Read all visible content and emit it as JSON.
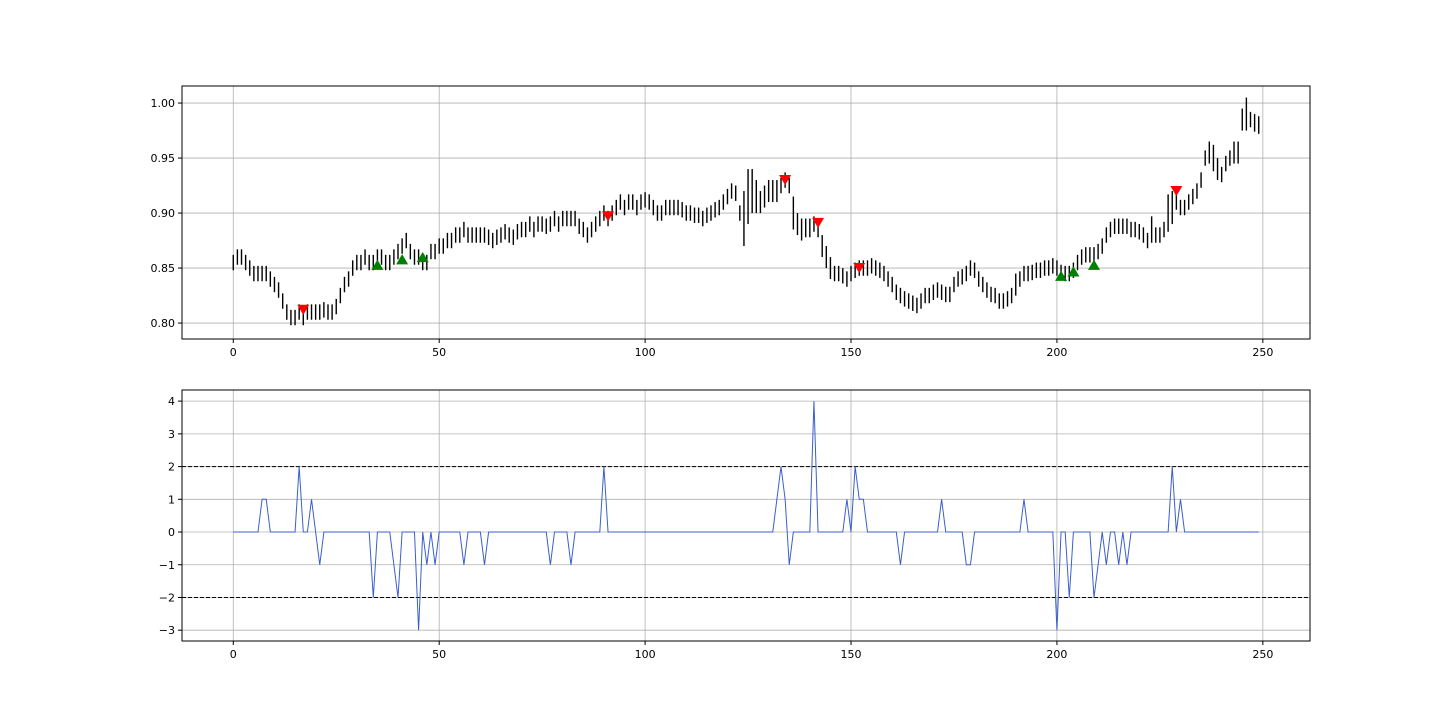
{
  "chart_data": [
    {
      "type": "ohlc",
      "color": "#000000",
      "grid": true,
      "xlim": [
        -12.45,
        261.45
      ],
      "xticks": [
        0,
        50,
        100,
        150,
        200,
        250
      ],
      "ylim": [
        0.7855,
        1.0155
      ],
      "yticks": [
        {
          "value": 0.8,
          "label": "0.80"
        },
        {
          "value": 0.85,
          "label": "0.85"
        },
        {
          "value": 0.9,
          "label": "0.90"
        },
        {
          "value": 0.95,
          "label": "0.95"
        },
        {
          "value": 1.0,
          "label": "1.00"
        }
      ],
      "high": [
        0.862,
        0.867,
        0.867,
        0.862,
        0.857,
        0.852,
        0.852,
        0.852,
        0.852,
        0.847,
        0.842,
        0.837,
        0.827,
        0.817,
        0.812,
        0.812,
        0.817,
        0.812,
        0.817,
        0.817,
        0.817,
        0.817,
        0.819,
        0.817,
        0.817,
        0.822,
        0.832,
        0.842,
        0.847,
        0.857,
        0.862,
        0.862,
        0.867,
        0.862,
        0.862,
        0.867,
        0.867,
        0.862,
        0.862,
        0.867,
        0.872,
        0.877,
        0.882,
        0.872,
        0.867,
        0.867,
        0.862,
        0.862,
        0.872,
        0.872,
        0.877,
        0.877,
        0.882,
        0.882,
        0.887,
        0.887,
        0.892,
        0.887,
        0.887,
        0.887,
        0.887,
        0.887,
        0.885,
        0.882,
        0.885,
        0.887,
        0.89,
        0.887,
        0.885,
        0.89,
        0.892,
        0.892,
        0.897,
        0.892,
        0.897,
        0.897,
        0.895,
        0.897,
        0.902,
        0.897,
        0.902,
        0.902,
        0.902,
        0.902,
        0.895,
        0.892,
        0.887,
        0.892,
        0.897,
        0.902,
        0.907,
        0.902,
        0.907,
        0.912,
        0.917,
        0.912,
        0.917,
        0.917,
        0.912,
        0.917,
        0.919,
        0.917,
        0.912,
        0.907,
        0.907,
        0.912,
        0.912,
        0.912,
        0.912,
        0.91,
        0.907,
        0.907,
        0.905,
        0.905,
        0.902,
        0.905,
        0.907,
        0.91,
        0.912,
        0.917,
        0.922,
        0.927,
        0.925,
        0.907,
        0.92,
        0.94,
        0.94,
        0.93,
        0.92,
        0.925,
        0.93,
        0.93,
        0.93,
        0.932,
        0.937,
        0.932,
        0.915,
        0.9,
        0.895,
        0.895,
        0.895,
        0.897,
        0.892,
        0.88,
        0.87,
        0.86,
        0.852,
        0.852,
        0.85,
        0.847,
        0.852,
        0.855,
        0.857,
        0.857,
        0.857,
        0.859,
        0.857,
        0.855,
        0.852,
        0.847,
        0.842,
        0.835,
        0.832,
        0.829,
        0.827,
        0.825,
        0.823,
        0.827,
        0.832,
        0.832,
        0.835,
        0.837,
        0.835,
        0.833,
        0.833,
        0.842,
        0.847,
        0.849,
        0.852,
        0.857,
        0.855,
        0.847,
        0.842,
        0.837,
        0.833,
        0.832,
        0.827,
        0.827,
        0.829,
        0.832,
        0.845,
        0.847,
        0.852,
        0.852,
        0.853,
        0.855,
        0.855,
        0.857,
        0.857,
        0.859,
        0.857,
        0.853,
        0.852,
        0.852,
        0.855,
        0.862,
        0.867,
        0.869,
        0.869,
        0.869,
        0.872,
        0.877,
        0.887,
        0.892,
        0.895,
        0.895,
        0.895,
        0.895,
        0.892,
        0.892,
        0.89,
        0.887,
        0.882,
        0.897,
        0.887,
        0.887,
        0.892,
        0.917,
        0.92,
        0.917,
        0.912,
        0.912,
        0.917,
        0.922,
        0.927,
        0.937,
        0.957,
        0.965,
        0.962,
        0.95,
        0.942,
        0.952,
        0.957,
        0.965,
        0.965,
        0.995,
        1.005,
        0.992,
        0.99,
        0.988
      ],
      "low": [
        0.848,
        0.853,
        0.853,
        0.848,
        0.843,
        0.838,
        0.838,
        0.838,
        0.838,
        0.833,
        0.828,
        0.823,
        0.813,
        0.803,
        0.798,
        0.798,
        0.803,
        0.798,
        0.803,
        0.803,
        0.803,
        0.803,
        0.805,
        0.803,
        0.803,
        0.808,
        0.818,
        0.828,
        0.833,
        0.843,
        0.848,
        0.848,
        0.853,
        0.848,
        0.848,
        0.853,
        0.853,
        0.848,
        0.848,
        0.853,
        0.858,
        0.863,
        0.868,
        0.858,
        0.853,
        0.853,
        0.848,
        0.848,
        0.858,
        0.858,
        0.863,
        0.863,
        0.868,
        0.868,
        0.873,
        0.873,
        0.878,
        0.873,
        0.873,
        0.873,
        0.873,
        0.873,
        0.871,
        0.868,
        0.871,
        0.873,
        0.876,
        0.873,
        0.871,
        0.876,
        0.878,
        0.878,
        0.883,
        0.878,
        0.883,
        0.883,
        0.881,
        0.883,
        0.888,
        0.883,
        0.888,
        0.888,
        0.888,
        0.888,
        0.881,
        0.878,
        0.873,
        0.878,
        0.883,
        0.888,
        0.893,
        0.888,
        0.893,
        0.898,
        0.903,
        0.898,
        0.903,
        0.903,
        0.898,
        0.903,
        0.905,
        0.903,
        0.898,
        0.893,
        0.893,
        0.898,
        0.898,
        0.898,
        0.898,
        0.896,
        0.893,
        0.893,
        0.891,
        0.891,
        0.888,
        0.891,
        0.893,
        0.896,
        0.898,
        0.903,
        0.908,
        0.913,
        0.911,
        0.893,
        0.87,
        0.89,
        0.9,
        0.9,
        0.9,
        0.905,
        0.91,
        0.91,
        0.91,
        0.918,
        0.923,
        0.918,
        0.885,
        0.88,
        0.875,
        0.878,
        0.878,
        0.883,
        0.878,
        0.86,
        0.85,
        0.84,
        0.838,
        0.838,
        0.836,
        0.833,
        0.838,
        0.841,
        0.843,
        0.843,
        0.843,
        0.845,
        0.843,
        0.841,
        0.838,
        0.833,
        0.828,
        0.821,
        0.818,
        0.815,
        0.813,
        0.811,
        0.809,
        0.813,
        0.818,
        0.818,
        0.821,
        0.823,
        0.821,
        0.819,
        0.819,
        0.828,
        0.833,
        0.835,
        0.838,
        0.843,
        0.841,
        0.833,
        0.828,
        0.823,
        0.819,
        0.818,
        0.813,
        0.813,
        0.815,
        0.818,
        0.825,
        0.833,
        0.838,
        0.838,
        0.839,
        0.841,
        0.841,
        0.843,
        0.843,
        0.845,
        0.843,
        0.839,
        0.838,
        0.838,
        0.841,
        0.848,
        0.853,
        0.855,
        0.855,
        0.855,
        0.858,
        0.863,
        0.873,
        0.878,
        0.881,
        0.881,
        0.881,
        0.881,
        0.878,
        0.878,
        0.876,
        0.873,
        0.868,
        0.873,
        0.873,
        0.873,
        0.878,
        0.883,
        0.89,
        0.903,
        0.898,
        0.898,
        0.903,
        0.908,
        0.913,
        0.923,
        0.943,
        0.945,
        0.938,
        0.93,
        0.928,
        0.938,
        0.943,
        0.945,
        0.945,
        0.975,
        0.975,
        0.978,
        0.974,
        0.972
      ],
      "sell_signals": {
        "color": "#ff0000",
        "x": [
          17,
          91,
          134,
          142,
          152,
          229
        ],
        "values": [
          0.812,
          0.897,
          0.93,
          0.891,
          0.85,
          0.92
        ]
      },
      "buy_signals": {
        "color": "#007f00",
        "x": [
          35,
          41,
          46,
          201,
          204,
          209
        ],
        "values": [
          0.853,
          0.858,
          0.86,
          0.843,
          0.847,
          0.853
        ]
      }
    },
    {
      "type": "line",
      "color": "#3a5fcd",
      "grid": true,
      "xlim": [
        -12.45,
        261.45
      ],
      "xticks": [
        0,
        50,
        100,
        150,
        200,
        250
      ],
      "ylim": [
        -3.33,
        4.34
      ],
      "yticks": [
        {
          "value": -3,
          "label": "−3"
        },
        {
          "value": -2,
          "label": "−2"
        },
        {
          "value": -1,
          "label": "−1"
        },
        0,
        1,
        2,
        3,
        4
      ],
      "hlines": [
        2,
        -2
      ],
      "values": [
        0,
        0,
        0,
        0,
        0,
        0,
        0,
        1,
        1,
        0,
        0,
        0,
        0,
        0,
        0,
        0,
        2,
        0,
        0,
        1,
        0,
        -1,
        0,
        0,
        0,
        0,
        0,
        0,
        0,
        0,
        0,
        0,
        0,
        0,
        -2,
        0,
        0,
        0,
        0,
        -1,
        -2,
        0,
        0,
        0,
        0,
        -3,
        0,
        -1,
        0,
        -1,
        0,
        0,
        0,
        0,
        0,
        0,
        -1,
        0,
        0,
        0,
        0,
        -1,
        0,
        0,
        0,
        0,
        0,
        0,
        0,
        0,
        0,
        0,
        0,
        0,
        0,
        0,
        0,
        -1,
        0,
        0,
        0,
        0,
        -1,
        0,
        0,
        0,
        0,
        0,
        0,
        0,
        2,
        0,
        0,
        0,
        0,
        0,
        0,
        0,
        0,
        0,
        0,
        0,
        0,
        0,
        0,
        0,
        0,
        0,
        0,
        0,
        0,
        0,
        0,
        0,
        0,
        0,
        0,
        0,
        0,
        0,
        0,
        0,
        0,
        0,
        0,
        0,
        0,
        0,
        0,
        0,
        0,
        0,
        1,
        2,
        1,
        -1,
        0,
        0,
        0,
        0,
        0,
        4,
        0,
        0,
        0,
        0,
        0,
        0,
        0,
        1,
        0,
        2,
        1,
        1,
        0,
        0,
        0,
        0,
        0,
        0,
        0,
        0,
        -1,
        0,
        0,
        0,
        0,
        0,
        0,
        0,
        0,
        0,
        1,
        0,
        0,
        0,
        0,
        0,
        -1,
        -1,
        0,
        0,
        0,
        0,
        0,
        0,
        0,
        0,
        0,
        0,
        0,
        0,
        1,
        0,
        0,
        0,
        0,
        0,
        0,
        0,
        -3,
        0,
        0,
        -2,
        0,
        0,
        0,
        0,
        0,
        -2,
        -1,
        0,
        -1,
        0,
        0,
        -1,
        0,
        -1,
        0,
        0,
        0,
        0,
        0,
        0,
        0,
        0,
        0,
        0,
        2,
        0,
        1,
        0,
        0,
        0,
        0,
        0,
        0,
        0,
        0,
        0,
        0,
        0,
        0,
        0,
        0,
        0,
        0,
        0,
        0,
        0
      ]
    }
  ]
}
